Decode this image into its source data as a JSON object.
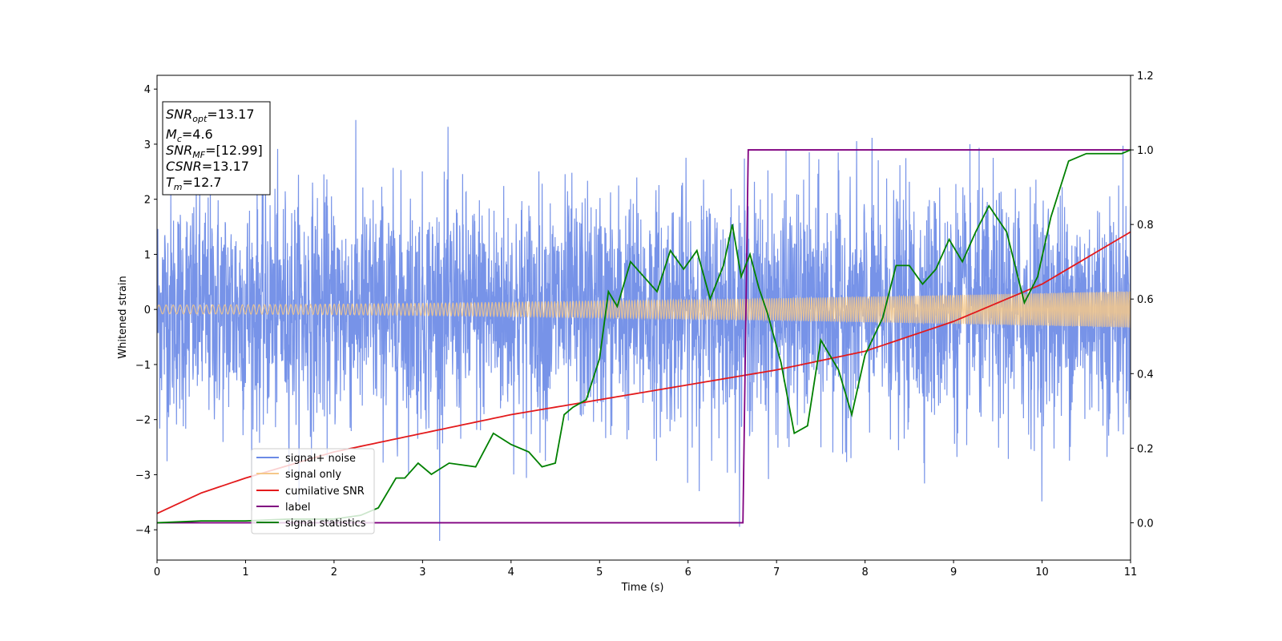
{
  "chart_data": {
    "type": "line",
    "xlabel": "Time (s)",
    "ylabel": "Whitened strain",
    "xlim": [
      0,
      11
    ],
    "ylim": [
      -4.55,
      4.25
    ],
    "y2lim": [
      -0.1,
      1.2
    ],
    "x_ticks": [
      "0",
      "1",
      "2",
      "3",
      "4",
      "5",
      "6",
      "7",
      "8",
      "9",
      "10",
      "11"
    ],
    "y_ticks": [
      "4",
      "3",
      "2",
      "1",
      "0",
      "−1",
      "−2",
      "−3",
      "−4"
    ],
    "y2_ticks": [
      "1.2",
      "1.0",
      "0.8",
      "0.6",
      "0.4",
      "0.2",
      "0.0"
    ],
    "legend_position": "lower-left",
    "info_box": {
      "snr_opt": {
        "base": "SNR",
        "sub": "opt",
        "value": "=13.17"
      },
      "mc": {
        "base": "M",
        "sub": "c",
        "value": "=4.6"
      },
      "snr_mf": {
        "base": "SNR",
        "sub": "MF",
        "value": "=[12.99]"
      },
      "csnr": {
        "base": "CSNR",
        "sub": "",
        "value": "=13.17"
      },
      "tm": {
        "base": "T",
        "sub": "m",
        "value": "=12.7"
      }
    },
    "series": [
      {
        "name": "signal+ noise",
        "color": "#6b8ae6",
        "axis": "left",
        "description": "whitened noise approx std 1.0, range about -4.2 to 3.8"
      },
      {
        "name": "signal only",
        "color": "#f5c88a",
        "axis": "left",
        "amplitude_start": 0.08,
        "amplitude_end": 0.33
      },
      {
        "name": "cumilative SNR",
        "color": "#e31a1c",
        "axis": "right",
        "x": [
          0,
          0.5,
          1,
          2,
          3,
          4,
          5,
          6,
          7,
          8,
          9,
          10,
          11
        ],
        "y": [
          0.025,
          0.08,
          0.12,
          0.19,
          0.24,
          0.29,
          0.33,
          0.37,
          0.41,
          0.46,
          0.54,
          0.64,
          0.78
        ]
      },
      {
        "name": "label",
        "color": "#800080",
        "axis": "right",
        "x": [
          0,
          6.62,
          6.68,
          11
        ],
        "y": [
          0,
          0,
          1,
          1
        ]
      },
      {
        "name": "signal statistics",
        "color": "#008000",
        "axis": "right",
        "x": [
          0,
          0.5,
          1,
          1.5,
          2,
          2.3,
          2.5,
          2.7,
          2.8,
          2.95,
          3.1,
          3.3,
          3.6,
          3.8,
          4.0,
          4.2,
          4.35,
          4.5,
          4.6,
          4.7,
          4.85,
          5.0,
          5.1,
          5.2,
          5.35,
          5.5,
          5.65,
          5.8,
          5.95,
          6.1,
          6.25,
          6.4,
          6.5,
          6.6,
          6.7,
          6.8,
          6.9,
          7.05,
          7.2,
          7.35,
          7.5,
          7.7,
          7.85,
          8.0,
          8.2,
          8.35,
          8.5,
          8.65,
          8.8,
          8.95,
          9.1,
          9.25,
          9.4,
          9.6,
          9.8,
          9.95,
          10.1,
          10.3,
          10.5,
          10.7,
          10.9,
          11.0
        ],
        "y": [
          0.0,
          0.005,
          0.005,
          0.01,
          0.01,
          0.02,
          0.04,
          0.12,
          0.12,
          0.16,
          0.13,
          0.16,
          0.15,
          0.24,
          0.21,
          0.19,
          0.15,
          0.16,
          0.29,
          0.31,
          0.33,
          0.44,
          0.62,
          0.58,
          0.7,
          0.66,
          0.62,
          0.73,
          0.68,
          0.73,
          0.6,
          0.69,
          0.8,
          0.66,
          0.72,
          0.63,
          0.56,
          0.43,
          0.24,
          0.26,
          0.49,
          0.41,
          0.29,
          0.45,
          0.55,
          0.69,
          0.69,
          0.64,
          0.68,
          0.76,
          0.7,
          0.78,
          0.85,
          0.78,
          0.59,
          0.66,
          0.82,
          0.97,
          0.99,
          0.99,
          0.99,
          1.0
        ]
      }
    ]
  }
}
